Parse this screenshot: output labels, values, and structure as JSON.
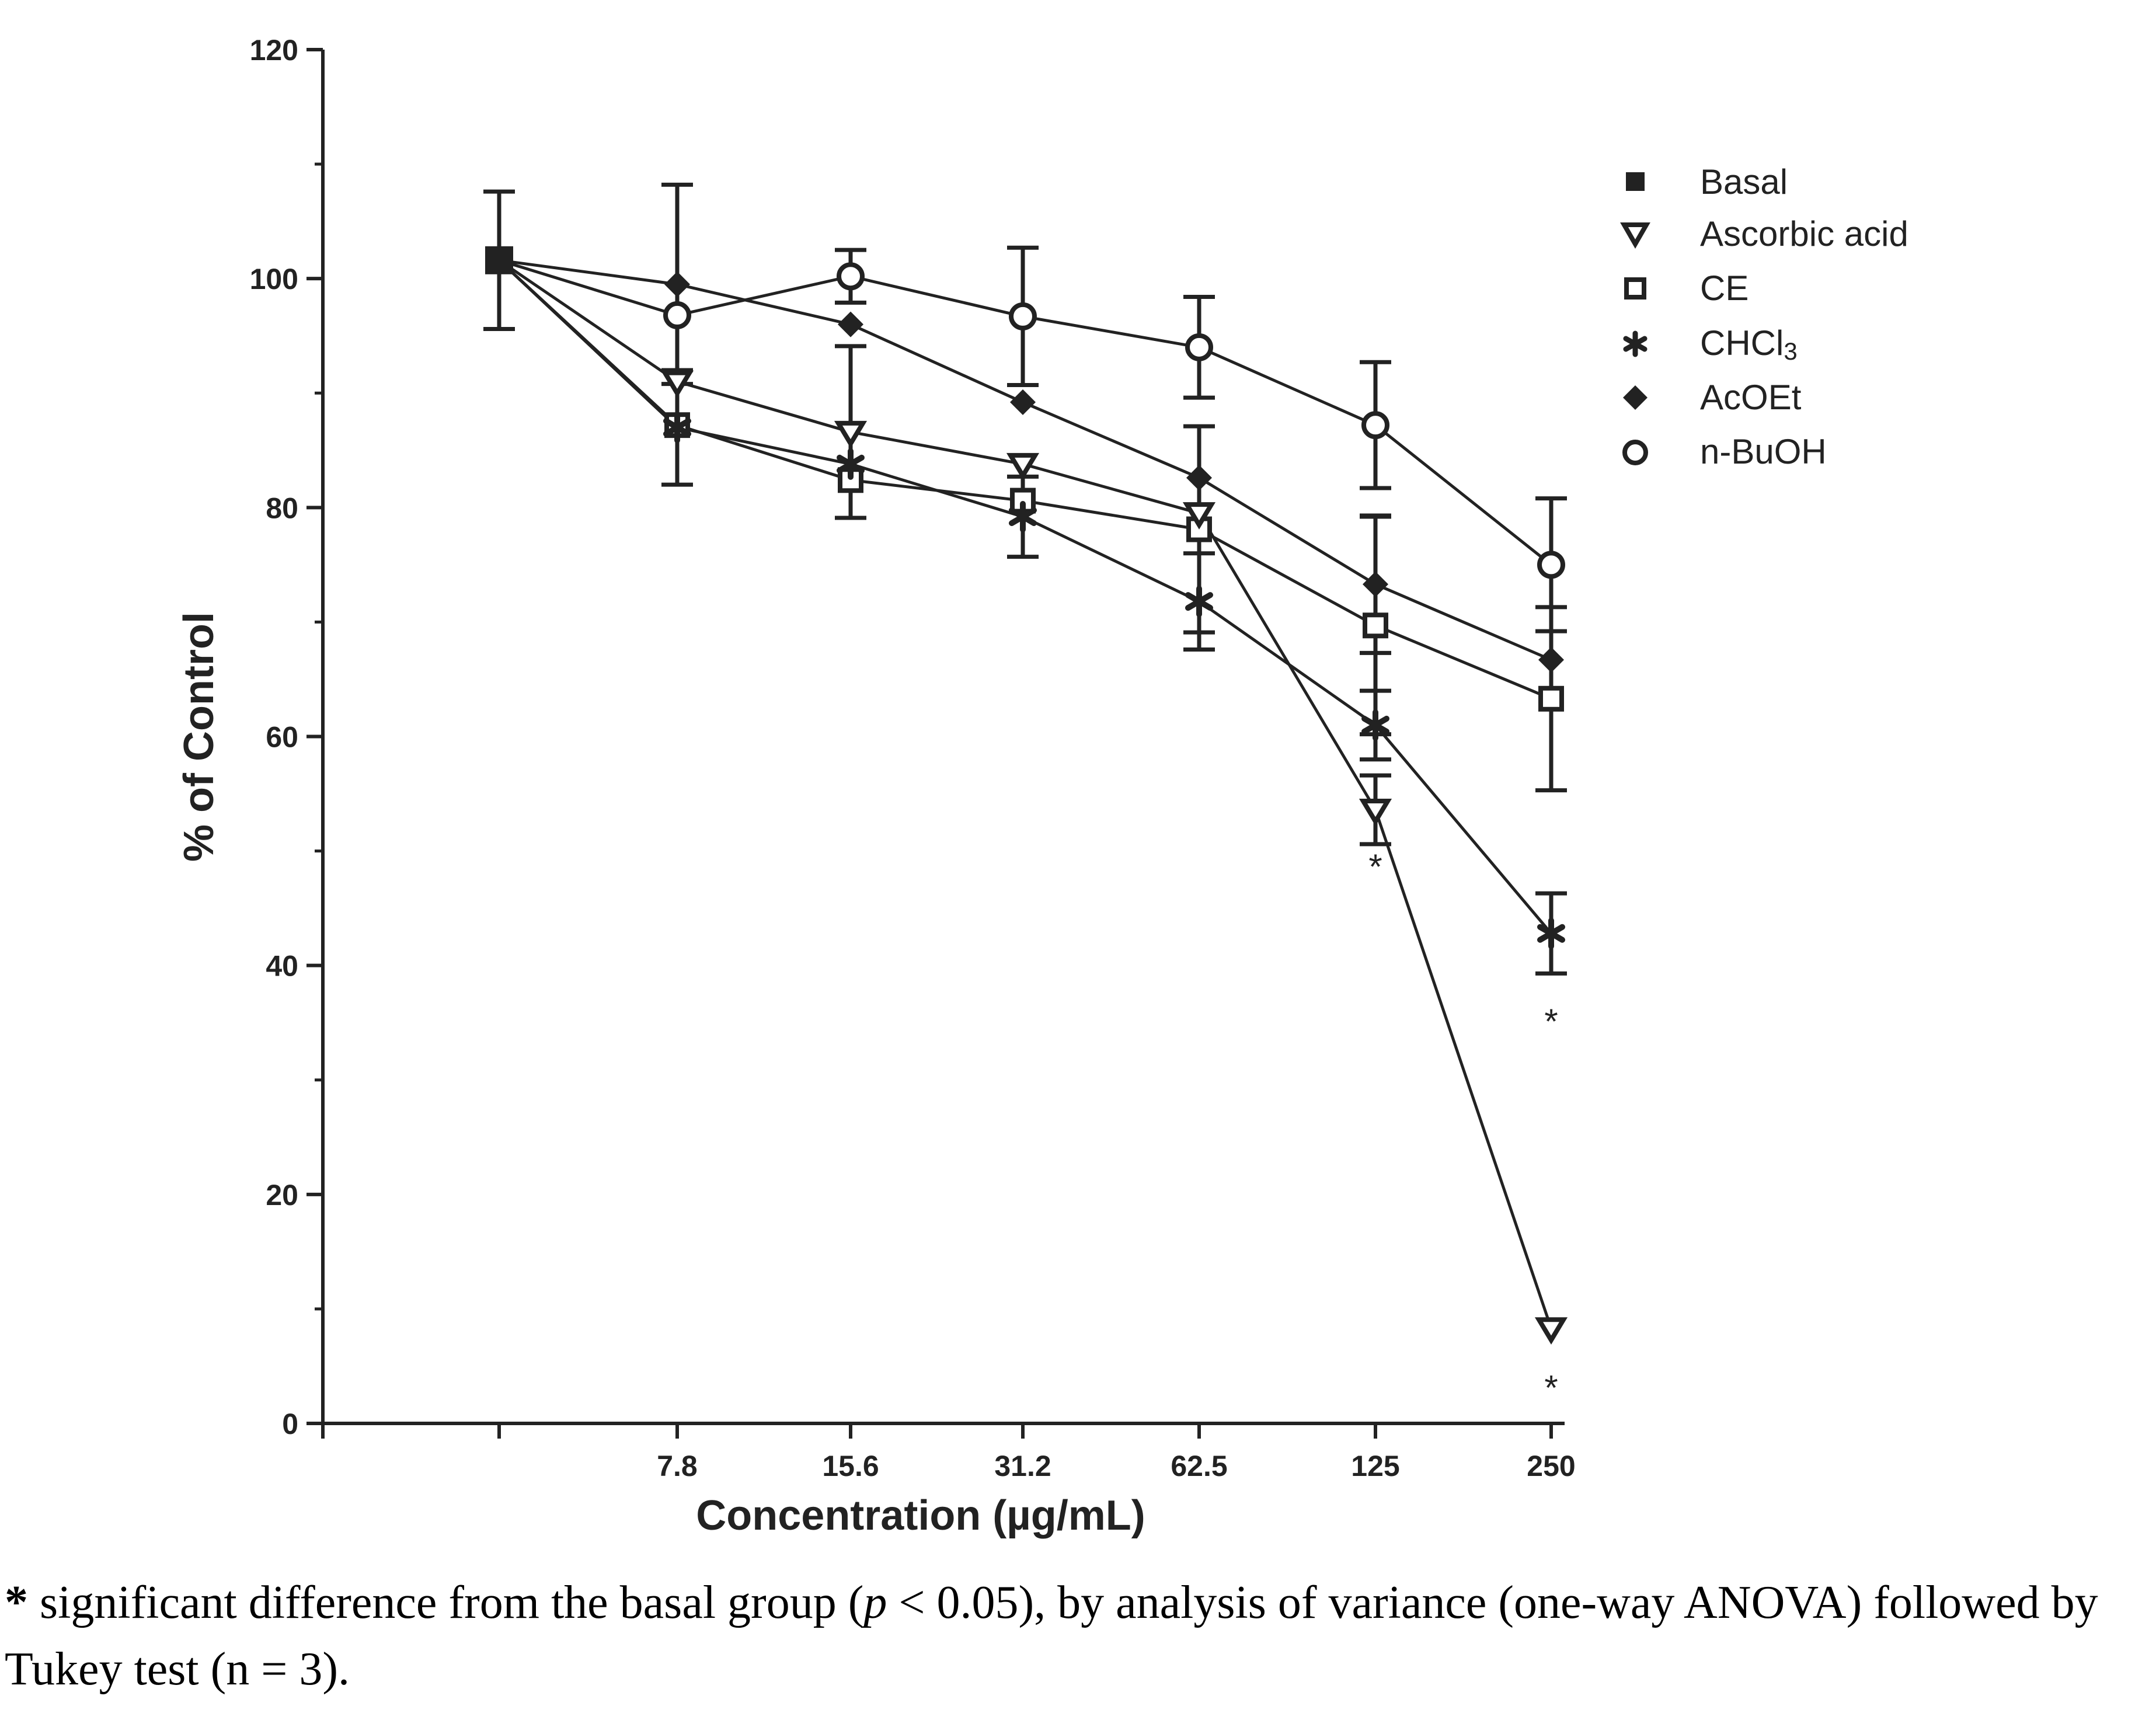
{
  "chart_data": {
    "type": "line",
    "title": "",
    "xlabel": "Concentration (µg/mL)",
    "ylabel": "% of Control",
    "x_categories": [
      "",
      "7.8",
      "15.6",
      "31.2",
      "62.5",
      "125",
      "250"
    ],
    "ylim": [
      0,
      120
    ],
    "y_ticks": [
      0,
      20,
      40,
      60,
      80,
      100,
      120
    ],
    "grid": false,
    "legend_position": "top-right",
    "series": [
      {
        "name": "Basal",
        "marker": "filled-square",
        "points": [
          {
            "x": "",
            "y": 101.6,
            "err": 6
          }
        ]
      },
      {
        "name": "Ascorbic acid",
        "marker": "open-triangle-down",
        "points": [
          {
            "x": "",
            "y": 101.6,
            "err": 0
          },
          {
            "x": "7.8",
            "y": 91,
            "err": 0
          },
          {
            "x": "15.6",
            "y": 86.6,
            "err": 7.5
          },
          {
            "x": "31.2",
            "y": 83.8,
            "err": 0
          },
          {
            "x": "62.5",
            "y": 79.5,
            "err": 0
          },
          {
            "x": "125",
            "y": 53.6,
            "err": 3
          },
          {
            "x": "250",
            "y": 8.3,
            "err": 0
          }
        ]
      },
      {
        "name": "CE",
        "marker": "open-square",
        "points": [
          {
            "x": "",
            "y": 101.6,
            "err": 0
          },
          {
            "x": "7.8",
            "y": 87.2,
            "err": 0
          },
          {
            "x": "15.6",
            "y": 82.4,
            "err": 0
          },
          {
            "x": "31.2",
            "y": 80.6,
            "err": 0
          },
          {
            "x": "62.5",
            "y": 78.1,
            "err": 9
          },
          {
            "x": "125",
            "y": 69.7,
            "err": 9.5
          },
          {
            "x": "250",
            "y": 63.3,
            "err": 8
          }
        ]
      },
      {
        "name": "CHCl3",
        "marker": "asterisk",
        "points": [
          {
            "x": "",
            "y": 101.6,
            "err": 0
          },
          {
            "x": "7.8",
            "y": 87,
            "err": 5
          },
          {
            "x": "15.6",
            "y": 83.8,
            "err": 0
          },
          {
            "x": "31.2",
            "y": 79.2,
            "err": 3.5
          },
          {
            "x": "62.5",
            "y": 71.8,
            "err": 4.2
          },
          {
            "x": "125",
            "y": 61,
            "err": 3
          },
          {
            "x": "250",
            "y": 42.8,
            "err": 3.5
          }
        ]
      },
      {
        "name": "AcOEt",
        "marker": "filled-diamond",
        "points": [
          {
            "x": "",
            "y": 101.6,
            "err": 0
          },
          {
            "x": "7.8",
            "y": 99.5,
            "err": 8.7
          },
          {
            "x": "15.6",
            "y": 96,
            "err": 0
          },
          {
            "x": "31.2",
            "y": 89.2,
            "err": 0
          },
          {
            "x": "62.5",
            "y": 82.6,
            "err": 0
          },
          {
            "x": "125",
            "y": 73.3,
            "err": 6
          },
          {
            "x": "250",
            "y": 66.7,
            "err": 0
          }
        ]
      },
      {
        "name": "n-BuOH",
        "marker": "open-circle",
        "points": [
          {
            "x": "",
            "y": 101.6,
            "err": 0
          },
          {
            "x": "7.8",
            "y": 96.8,
            "err": 0
          },
          {
            "x": "15.6",
            "y": 100.2,
            "err": 2.3
          },
          {
            "x": "31.2",
            "y": 96.7,
            "err": 6
          },
          {
            "x": "62.5",
            "y": 94,
            "err": 4.4
          },
          {
            "x": "125",
            "y": 87.2,
            "err": 5.5
          },
          {
            "x": "250",
            "y": 75,
            "err": 5.8
          }
        ]
      }
    ],
    "annotations": [
      {
        "text": "*",
        "x": "125",
        "y": 48.7
      },
      {
        "text": "*",
        "x": "250",
        "y": 35.2
      },
      {
        "text": "*",
        "x": "250",
        "y": 3.2
      }
    ]
  },
  "legend_labels": {
    "basal": "Basal",
    "ascorbic": "Ascorbic acid",
    "ce": "CE",
    "chcl3_base": "CHCl",
    "chcl3_sub": "3",
    "acoet": "AcOEt",
    "nbuoh": "n-BuOH"
  },
  "footnote": {
    "star": "*",
    "part1": " significant difference from the basal group (",
    "p": "p",
    "part2": " < 0.05), by analysis of variance (one-way ANOVA) followed by Tukey test (n = 3)."
  },
  "colors": {
    "ink": "#222222",
    "background": "#ffffff"
  }
}
